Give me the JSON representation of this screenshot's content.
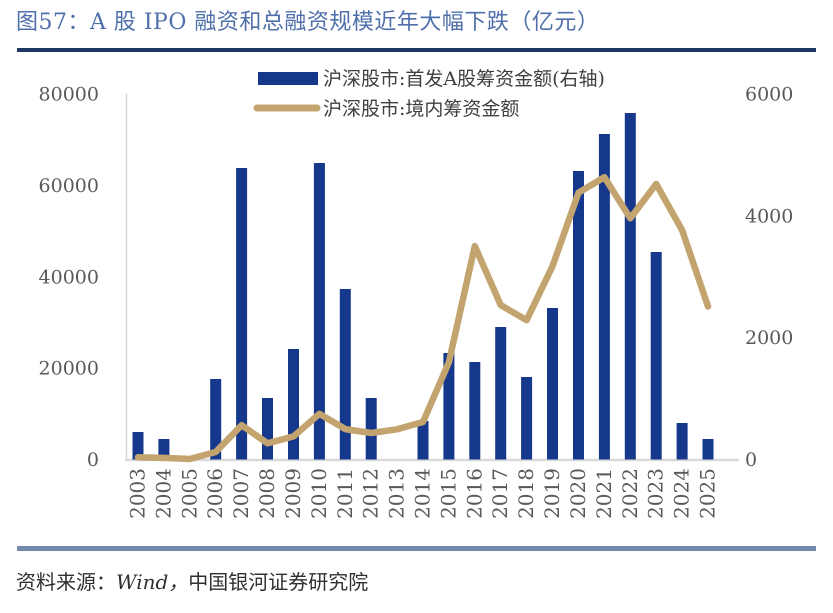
{
  "header": {
    "figure_title": "图57：A 股 IPO 融资和总融资规模近年大幅下跌（亿元）"
  },
  "footer": {
    "prefix": "资料来源：",
    "wind": "Wind，",
    "org": "中国银河证券研究院"
  },
  "colors": {
    "title_blue": "#4f6fac",
    "rule_top": "#1f3864",
    "rule_bottom": "#7289ad",
    "axis_text": "#595959",
    "axis_line": "#d9d9d9"
  },
  "chart_data": {
    "type": "bar+line combo",
    "title": "图57：A 股 IPO 融资和总融资规模近年大幅下跌（亿元）",
    "unit": "亿元",
    "grid": false,
    "legend_position": "top-center",
    "categories": [
      "2003",
      "2004",
      "2005",
      "2006",
      "2007",
      "2008",
      "2009",
      "2010",
      "2011",
      "2012",
      "2013",
      "2014",
      "2015",
      "2016",
      "2017",
      "2018",
      "2019",
      "2020",
      "2021",
      "2022",
      "2023",
      "2024",
      "2025"
    ],
    "left_axis": {
      "min": 0,
      "max": 80000,
      "ticks": [
        0,
        20000,
        40000,
        60000,
        80000
      ]
    },
    "right_axis": {
      "min": 0,
      "max": 6000,
      "ticks": [
        0,
        2000,
        4000,
        6000
      ]
    },
    "series": [
      {
        "name": "沪深股市:首发A股筹资金额(右轴)",
        "type": "bar",
        "axis": "right",
        "color": "#15388d",
        "values": [
          451,
          337,
          57,
          1321,
          4785,
          1010,
          1814,
          4867,
          2799,
          1010,
          0,
          632,
          1748,
          1601,
          2175,
          1354,
          2487,
          4736,
          5343,
          5688,
          3406,
          599,
          337
        ]
      },
      {
        "name": "沪深股市:境内筹资金额",
        "type": "line",
        "axis": "left",
        "color": "#c3a36e",
        "values": [
          500,
          350,
          120,
          1650,
          7500,
          3550,
          5050,
          10000,
          6650,
          5800,
          6600,
          8200,
          21300,
          46700,
          33800,
          30500,
          42300,
          58400,
          61800,
          52800,
          60300,
          50200,
          33500
        ]
      }
    ]
  }
}
